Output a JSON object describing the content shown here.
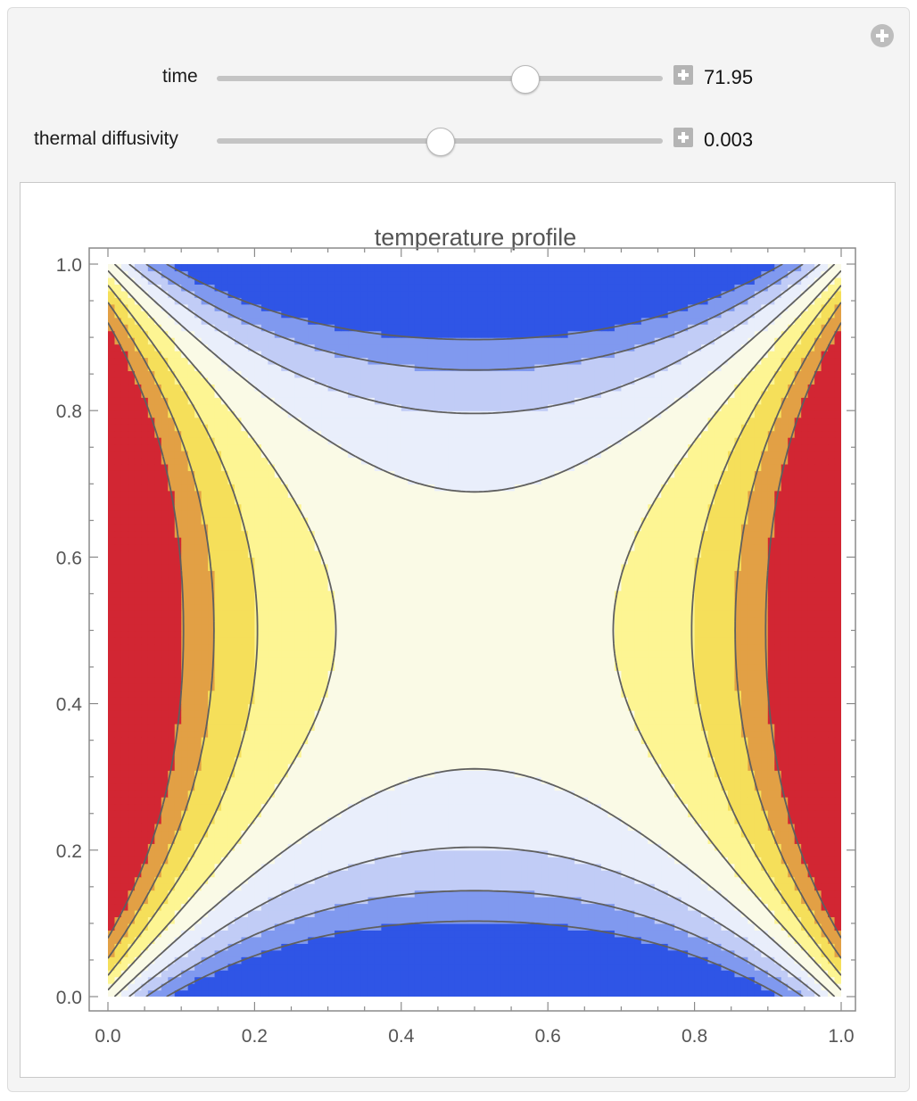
{
  "controls": {
    "time": {
      "label": "time",
      "value": "71.95",
      "position": 0.69
    },
    "diffusivity": {
      "label": "thermal diffusivity",
      "value": "0.003",
      "position": 0.5
    }
  },
  "icons": {
    "panel_add": "plus-circle-icon",
    "time_stepper": "plus-icon",
    "diffusivity_stepper": "plus-icon"
  },
  "chart_data": {
    "type": "contour",
    "title": "temperature profile",
    "xlim": [
      0,
      1
    ],
    "ylim": [
      0,
      1
    ],
    "x_ticks": [
      "0.0",
      "0.2",
      "0.4",
      "0.6",
      "0.8",
      "1.0"
    ],
    "y_ticks": [
      "0.0",
      "0.2",
      "0.4",
      "0.6",
      "0.8",
      "1.0"
    ],
    "fill_colors_low_to_high": [
      "#2f55e6",
      "#8099ef",
      "#c1ccf6",
      "#e9eefb",
      "#fafae6",
      "#fdf593",
      "#f5df5a",
      "#e2a045",
      "#d22633"
    ],
    "contour_levels": 8,
    "grid": false,
    "legend": "none"
  }
}
